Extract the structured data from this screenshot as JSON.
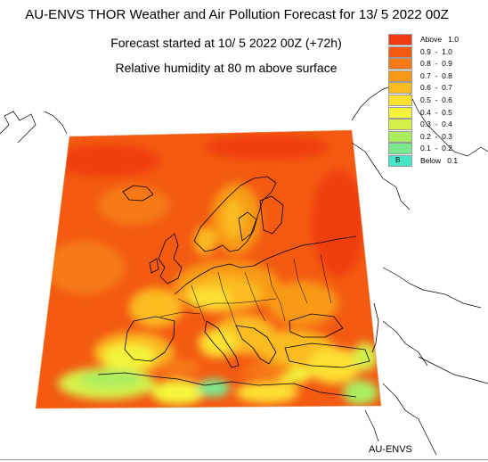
{
  "header": {
    "title": "AU-ENVS THOR Weather and Air Pollution Forecast for 13/ 5 2022  00Z",
    "subtitle": "Forecast started at 10/ 5 2022  00Z (+72h)",
    "variable": "Relative humidity at 80 m above surface"
  },
  "legend": {
    "items": [
      {
        "label": "Above   1.0",
        "color": "#f03c10"
      },
      {
        "label": "0.9  -  1.0",
        "color": "#f45a12"
      },
      {
        "label": "0.8  -  0.9",
        "color": "#f67a14"
      },
      {
        "label": "0.7  -  0.8",
        "color": "#f89a18"
      },
      {
        "label": "0.6  -  0.7",
        "color": "#fbbc20"
      },
      {
        "label": "0.5  -  0.6",
        "color": "#fde030"
      },
      {
        "label": "0.4  -  0.5",
        "color": "#f4f43a"
      },
      {
        "label": "0.3  -  0.4",
        "color": "#d6f048"
      },
      {
        "label": "0.2  -  0.3",
        "color": "#aaee60"
      },
      {
        "label": "0.1  -  0.2",
        "color": "#7aea90"
      },
      {
        "label": "Below   0.1",
        "color": "#48e6c8",
        "mark": "B"
      }
    ]
  },
  "credit": "AU-ENVS"
}
